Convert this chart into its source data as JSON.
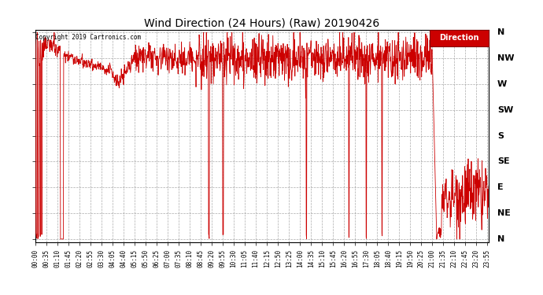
{
  "title": "Wind Direction (24 Hours) (Raw) 20190426",
  "copyright": "Copyright 2019 Cartronics.com",
  "legend_label": "Direction",
  "legend_bg": "#cc0000",
  "legend_text_color": "#ffffff",
  "line_color": "#cc0000",
  "background_color": "#ffffff",
  "grid_color": "#888888",
  "ytick_labels_top_to_bottom": [
    "N",
    "NW",
    "W",
    "SW",
    "S",
    "SE",
    "E",
    "NE",
    "N"
  ],
  "ytick_values": [
    360,
    315,
    270,
    225,
    180,
    135,
    90,
    45,
    0
  ],
  "ylim": [
    -5,
    365
  ],
  "xlim_minutes": [
    0,
    1439
  ],
  "xtick_step_minutes": 35,
  "num_points": 1440,
  "seed": 42,
  "figsize": [
    6.9,
    3.75
  ],
  "dpi": 100
}
